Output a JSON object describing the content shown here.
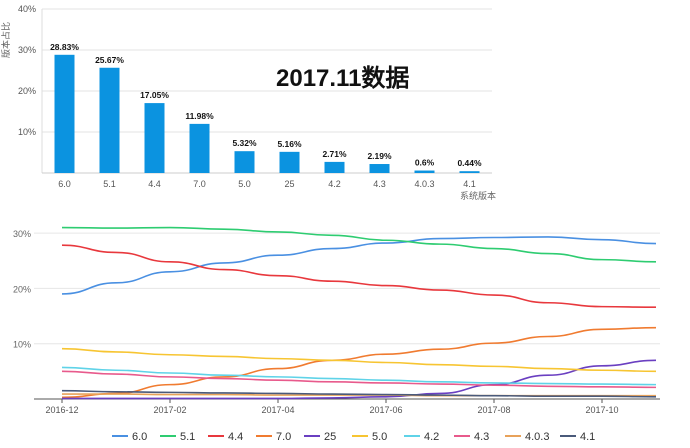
{
  "chart_data": [
    {
      "type": "bar",
      "title": "2017.11数据",
      "ylabel": "版本占比",
      "xlabel": "系统版本",
      "categories": [
        "6.0",
        "5.1",
        "4.4",
        "7.0",
        "5.0",
        "25",
        "4.2",
        "4.3",
        "4.0.3",
        "4.1"
      ],
      "values": [
        28.83,
        25.67,
        17.05,
        11.98,
        5.32,
        5.16,
        2.71,
        2.19,
        0.6,
        0.44
      ],
      "data_labels": [
        "28.83%",
        "25.67%",
        "17.05%",
        "11.98%",
        "5.32%",
        "5.16%",
        "2.71%",
        "2.19%",
        "0.6%",
        "0.44%"
      ],
      "ylim": [
        0,
        40
      ],
      "yticks": [
        0,
        10,
        20,
        30,
        40
      ],
      "ytick_labels": [
        "",
        "10%",
        "20%",
        "30%",
        "40%"
      ],
      "grid": true,
      "color": "#0b93e0"
    },
    {
      "type": "line",
      "x": [
        "2016-12",
        "2017-01",
        "2017-02",
        "2017-03",
        "2017-04",
        "2017-05",
        "2017-06",
        "2017-07",
        "2017-08",
        "2017-09",
        "2017-10",
        "2017-11"
      ],
      "xtick_labels": [
        "2016-12",
        "2017-02",
        "2017-04",
        "2017-06",
        "2017-08",
        "2017-10"
      ],
      "ylim": [
        0,
        32
      ],
      "yticks": [
        10,
        20,
        30
      ],
      "ytick_labels": [
        "10%",
        "20%",
        "30%"
      ],
      "grid": true,
      "legend_position": "bottom",
      "series": [
        {
          "name": "6.0",
          "color": "#4a90e2",
          "values": [
            19.0,
            21.0,
            23.0,
            24.6,
            26.0,
            27.2,
            28.2,
            29.0,
            29.2,
            29.3,
            28.8,
            28.1
          ]
        },
        {
          "name": "5.1",
          "color": "#2ecc71",
          "values": [
            31.0,
            30.9,
            31.0,
            30.7,
            30.2,
            29.6,
            28.7,
            28.0,
            27.2,
            26.3,
            25.2,
            24.8
          ]
        },
        {
          "name": "4.4",
          "color": "#e8383d",
          "values": [
            27.8,
            26.5,
            24.8,
            23.4,
            22.3,
            21.3,
            20.5,
            19.7,
            18.8,
            17.4,
            16.7,
            16.6
          ]
        },
        {
          "name": "7.0",
          "color": "#f07b30",
          "values": [
            0.3,
            1.0,
            2.6,
            4.0,
            5.5,
            7.0,
            8.1,
            9.0,
            10.1,
            11.3,
            12.6,
            12.9
          ]
        },
        {
          "name": "25",
          "color": "#6a3fc1",
          "values": [
            0.1,
            0.1,
            0.1,
            0.1,
            0.1,
            0.2,
            0.4,
            1.0,
            2.6,
            4.3,
            6.0,
            7.0
          ]
        },
        {
          "name": "5.0",
          "color": "#f7c532",
          "values": [
            9.1,
            8.5,
            8.0,
            7.7,
            7.3,
            7.0,
            6.6,
            6.2,
            5.9,
            5.5,
            5.2,
            5.0
          ]
        },
        {
          "name": "4.2",
          "color": "#5fd3e8",
          "values": [
            5.7,
            5.2,
            4.7,
            4.3,
            4.0,
            3.7,
            3.4,
            3.1,
            2.9,
            2.8,
            2.7,
            2.6
          ]
        },
        {
          "name": "4.3",
          "color": "#e85a8c",
          "values": [
            5.0,
            4.5,
            4.0,
            3.7,
            3.4,
            3.1,
            2.9,
            2.7,
            2.5,
            2.3,
            2.2,
            2.1
          ]
        },
        {
          "name": "4.0.3",
          "color": "#e8a25a",
          "values": [
            0.9,
            0.9,
            0.8,
            0.8,
            0.7,
            0.7,
            0.7,
            0.6,
            0.6,
            0.6,
            0.6,
            0.6
          ]
        },
        {
          "name": "4.1",
          "color": "#4a5a7a",
          "values": [
            1.5,
            1.3,
            1.2,
            1.1,
            1.0,
            0.9,
            0.8,
            0.7,
            0.6,
            0.5,
            0.5,
            0.4
          ]
        }
      ]
    }
  ]
}
